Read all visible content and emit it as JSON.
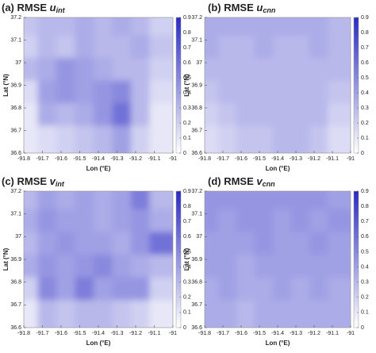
{
  "chart_data": [
    {
      "type": "heatmap",
      "title": "(a) RMSE ",
      "title_var": "u",
      "title_sub": "int",
      "xlabel": "Lon (°E)",
      "ylabel": "Lat (°N)",
      "x": [
        -91.75,
        -91.65,
        -91.55,
        -91.45,
        -91.35,
        -91.25,
        -91.15,
        -91.05
      ],
      "y": [
        37.15,
        37.05,
        36.95,
        36.85,
        36.75,
        36.65
      ],
      "z": [
        [
          0.25,
          0.3,
          0.3,
          0.35,
          0.3,
          0.35,
          0.3,
          0.2
        ],
        [
          0.2,
          0.3,
          0.25,
          0.35,
          0.3,
          0.3,
          0.35,
          0.25
        ],
        [
          0.3,
          0.35,
          0.45,
          0.4,
          0.35,
          0.3,
          0.3,
          0.2
        ],
        [
          0.15,
          0.4,
          0.45,
          0.4,
          0.45,
          0.5,
          0.3,
          0.15
        ],
        [
          0.1,
          0.35,
          0.3,
          0.35,
          0.45,
          0.6,
          0.3,
          0.1
        ],
        [
          0.1,
          0.15,
          0.2,
          0.25,
          0.3,
          0.4,
          0.2,
          0.1
        ]
      ],
      "xlim": [
        -91.8,
        -91
      ],
      "ylim": [
        36.6,
        37.2
      ],
      "xticks": [
        -91.8,
        -91.7,
        -91.6,
        -91.5,
        -91.4,
        -91.3,
        -91.2,
        -91.1,
        -91
      ],
      "yticks": [
        36.6,
        36.7,
        36.8,
        36.9,
        37,
        37.1,
        37.2
      ],
      "clim": [
        0,
        0.9
      ],
      "cticks": [
        0,
        0.1,
        0.2,
        0.3,
        0.4,
        0.5,
        0.6,
        0.7,
        0.8,
        0.9
      ],
      "colormap": [
        "#ffffff",
        "#2a2ac4"
      ]
    },
    {
      "type": "heatmap",
      "title": "(b) RMSE ",
      "title_var": "u",
      "title_sub": "cnn",
      "xlabel": "Lon (°E)",
      "ylabel": "Lat (°N)",
      "x": [
        -91.75,
        -91.65,
        -91.55,
        -91.45,
        -91.35,
        -91.25,
        -91.15,
        -91.05
      ],
      "y": [
        37.15,
        37.05,
        36.95,
        36.85,
        36.75,
        36.65
      ],
      "z": [
        [
          0.35,
          0.35,
          0.35,
          0.35,
          0.35,
          0.35,
          0.35,
          0.3
        ],
        [
          0.35,
          0.3,
          0.3,
          0.35,
          0.3,
          0.3,
          0.35,
          0.3
        ],
        [
          0.3,
          0.3,
          0.3,
          0.3,
          0.3,
          0.3,
          0.3,
          0.3
        ],
        [
          0.25,
          0.3,
          0.3,
          0.3,
          0.3,
          0.3,
          0.3,
          0.25
        ],
        [
          0.2,
          0.25,
          0.3,
          0.3,
          0.3,
          0.3,
          0.3,
          0.2
        ],
        [
          0.15,
          0.2,
          0.25,
          0.25,
          0.3,
          0.3,
          0.25,
          0.15
        ]
      ],
      "xlim": [
        -91.8,
        -91
      ],
      "ylim": [
        36.6,
        37.2
      ],
      "xticks": [
        -91.8,
        -91.7,
        -91.6,
        -91.5,
        -91.4,
        -91.3,
        -91.2,
        -91.1,
        -91
      ],
      "yticks": [
        36.6,
        36.7,
        36.8,
        36.9,
        37,
        37.1,
        37.2
      ],
      "clim": [
        0,
        0.9
      ],
      "cticks": [
        0,
        0.1,
        0.2,
        0.3,
        0.4,
        0.5,
        0.6,
        0.7,
        0.8,
        0.9
      ],
      "colormap": [
        "#ffffff",
        "#2a2ac4"
      ]
    },
    {
      "type": "heatmap",
      "title": "(c) RMSE ",
      "title_var": "v",
      "title_sub": "int",
      "xlabel": "Lon (°E)",
      "ylabel": "Lat (°N)",
      "x": [
        -91.75,
        -91.65,
        -91.55,
        -91.45,
        -91.35,
        -91.25,
        -91.15,
        -91.05
      ],
      "y": [
        37.15,
        37.05,
        36.95,
        36.85,
        36.75,
        36.65
      ],
      "z": [
        [
          0.3,
          0.4,
          0.35,
          0.4,
          0.35,
          0.4,
          0.55,
          0.3
        ],
        [
          0.35,
          0.45,
          0.4,
          0.4,
          0.35,
          0.4,
          0.45,
          0.35
        ],
        [
          0.3,
          0.4,
          0.45,
          0.4,
          0.4,
          0.35,
          0.45,
          0.6
        ],
        [
          0.35,
          0.45,
          0.4,
          0.45,
          0.5,
          0.4,
          0.35,
          0.3
        ],
        [
          0.2,
          0.5,
          0.4,
          0.55,
          0.4,
          0.45,
          0.45,
          0.2
        ],
        [
          0.1,
          0.3,
          0.25,
          0.3,
          0.3,
          0.25,
          0.2,
          0.1
        ]
      ],
      "xlim": [
        -91.8,
        -91
      ],
      "ylim": [
        36.6,
        37.2
      ],
      "xticks": [
        -91.8,
        -91.7,
        -91.6,
        -91.5,
        -91.4,
        -91.3,
        -91.2,
        -91.1,
        -91
      ],
      "yticks": [
        36.6,
        36.7,
        36.8,
        36.9,
        37,
        37.1,
        37.2
      ],
      "clim": [
        0,
        0.9
      ],
      "cticks": [
        0,
        0.1,
        0.2,
        0.3,
        0.4,
        0.5,
        0.6,
        0.7,
        0.8,
        0.9
      ],
      "colormap": [
        "#ffffff",
        "#2a2ac4"
      ]
    },
    {
      "type": "heatmap",
      "title": "(d) RMSE ",
      "title_var": "v",
      "title_sub": "cnn",
      "xlabel": "Lon (°E)",
      "ylabel": "Lat (°N)",
      "x": [
        -91.75,
        -91.65,
        -91.55,
        -91.45,
        -91.35,
        -91.25,
        -91.15,
        -91.05
      ],
      "y": [
        37.15,
        37.05,
        36.95,
        36.85,
        36.75,
        36.65
      ],
      "z": [
        [
          0.45,
          0.45,
          0.45,
          0.45,
          0.45,
          0.45,
          0.45,
          0.4
        ],
        [
          0.45,
          0.4,
          0.45,
          0.45,
          0.4,
          0.45,
          0.4,
          0.45
        ],
        [
          0.4,
          0.4,
          0.4,
          0.45,
          0.4,
          0.4,
          0.45,
          0.4
        ],
        [
          0.4,
          0.4,
          0.35,
          0.4,
          0.4,
          0.4,
          0.4,
          0.4
        ],
        [
          0.35,
          0.4,
          0.35,
          0.35,
          0.4,
          0.35,
          0.4,
          0.35
        ],
        [
          0.35,
          0.35,
          0.3,
          0.35,
          0.35,
          0.35,
          0.35,
          0.35
        ]
      ],
      "xlim": [
        -91.8,
        -91
      ],
      "ylim": [
        36.6,
        37.2
      ],
      "xticks": [
        -91.8,
        -91.7,
        -91.6,
        -91.5,
        -91.4,
        -91.3,
        -91.2,
        -91.1,
        -91
      ],
      "yticks": [
        36.6,
        36.7,
        36.8,
        36.9,
        37,
        37.1,
        37.2
      ],
      "clim": [
        0,
        0.9
      ],
      "cticks": [
        0,
        0.1,
        0.2,
        0.3,
        0.4,
        0.5,
        0.6,
        0.7,
        0.8,
        0.9
      ],
      "colormap": [
        "#ffffff",
        "#2a2ac4"
      ]
    }
  ]
}
